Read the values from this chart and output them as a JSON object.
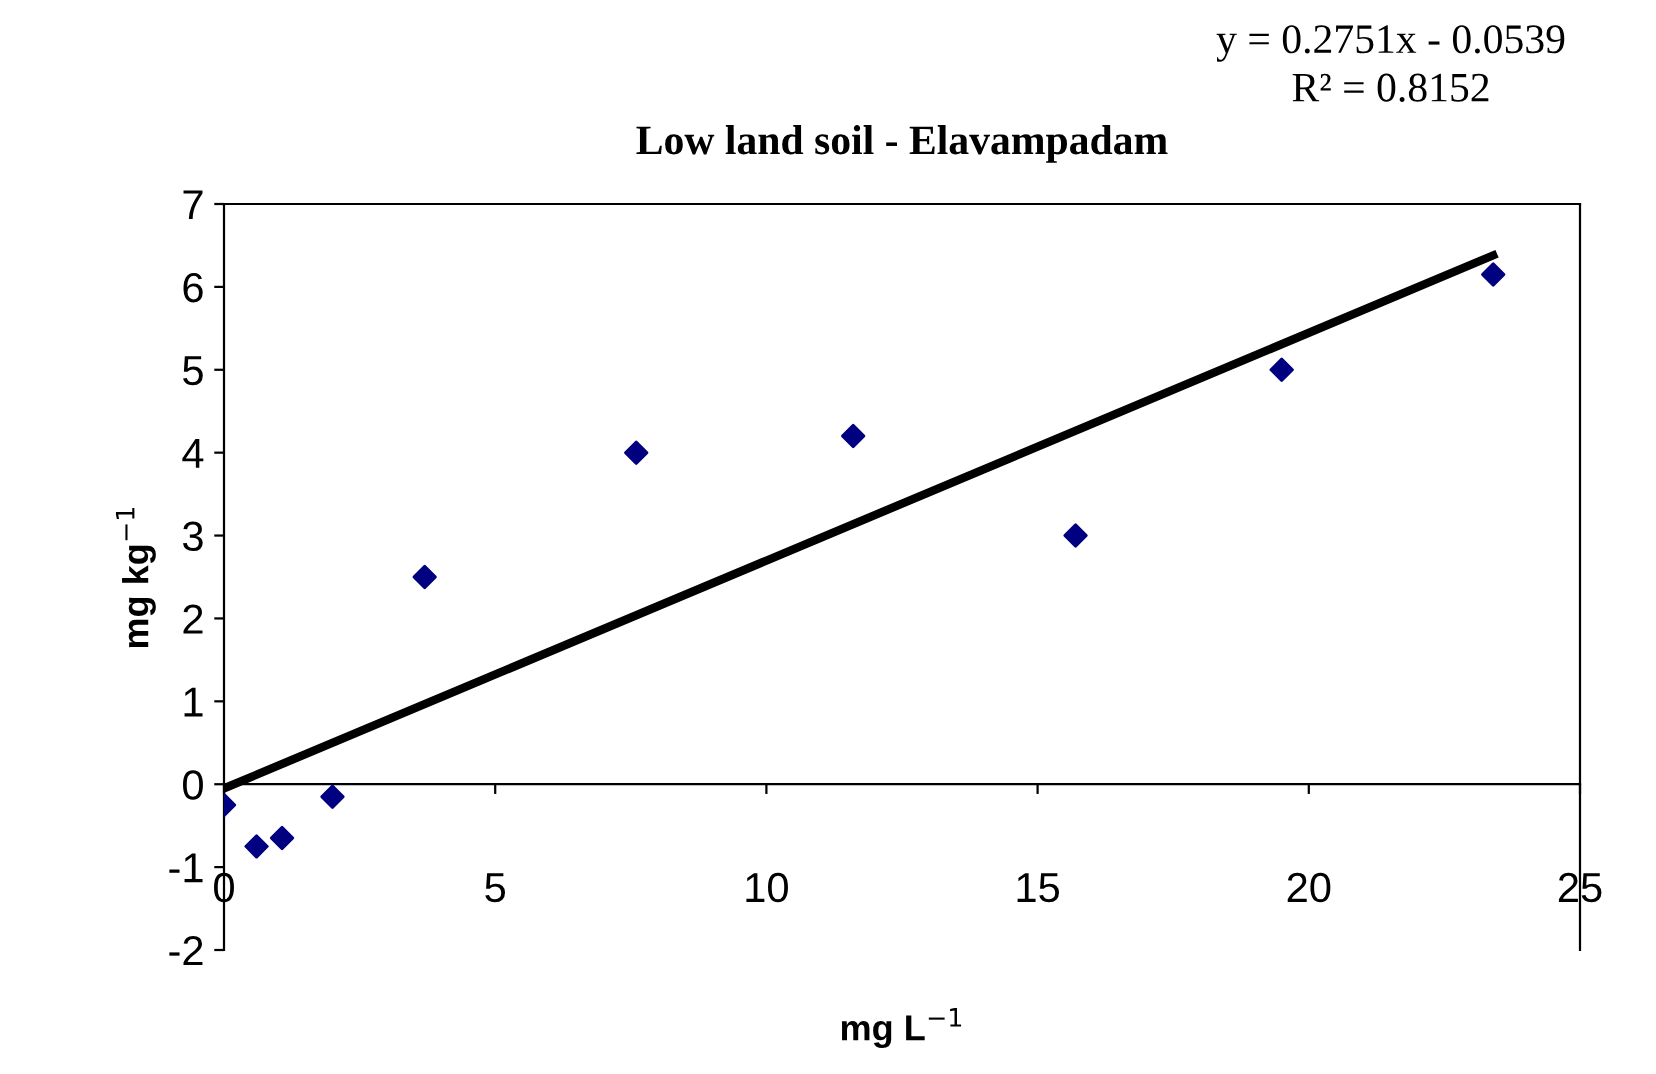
{
  "chart_data": {
    "type": "scatter",
    "title": "Low land soil - Elavampadam",
    "xlabel": "mg L$^{−1}$",
    "ylabel": "mg kg$^{−1}$",
    "annotations": [
      "y = 0.2751x - 0.0539",
      "R² = 0.8152"
    ],
    "series": [
      {
        "color": "#000080",
        "marker": "diamond",
        "x": [
          0,
          0.6,
          1.07,
          2.0,
          3.7,
          7.6,
          11.6,
          15.7,
          19.5,
          23.4
        ],
        "values": [
          -0.25,
          -0.75,
          -0.65,
          -0.15,
          2.5,
          4.0,
          4.2,
          3.0,
          5.0,
          6.15
        ]
      },
      {
        "type": "line",
        "color": "#000000",
        "marker": "none",
        "x": [
          0,
          23.4
        ],
        "values": [
          -0.05,
          6.38
        ]
      }
    ],
    "xlim": [
      0,
      25
    ],
    "xticks": [
      0,
      5,
      10,
      15,
      20,
      25
    ],
    "ylim": [
      -2,
      7
    ],
    "yticks": [
      -2,
      -1,
      0,
      1,
      2,
      3,
      4,
      5,
      6,
      7
    ],
    "grid": false,
    "legend": false
  }
}
